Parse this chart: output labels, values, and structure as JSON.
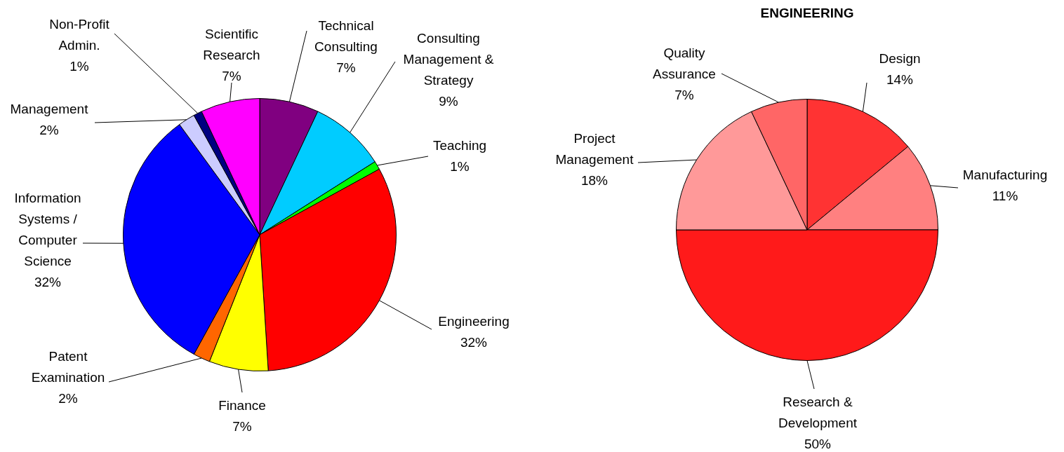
{
  "chart_data": [
    {
      "type": "pie",
      "categories": [
        "Technical Consulting",
        "Consulting Management & Strategy",
        "Teaching",
        "Engineering",
        "Finance",
        "Patent Examination",
        "Information Systems / Computer Science",
        "Management",
        "Non-Profit Admin.",
        "Scientific Research"
      ],
      "values": [
        7,
        9,
        1,
        32,
        7,
        2,
        32,
        2,
        1,
        7
      ],
      "value_labels": [
        "7%",
        "9%",
        "1%",
        "32%",
        "7%",
        "2%",
        "32%",
        "2%",
        "1%",
        "7%"
      ],
      "colors": [
        "#800080",
        "#00ccff",
        "#00ff00",
        "#ff0000",
        "#ffff00",
        "#ff6600",
        "#0000ff",
        "#ccccff",
        "#000080",
        "#ff00ff"
      ],
      "legend": false
    },
    {
      "type": "pie",
      "title": "ENGINEERING",
      "categories": [
        "Design",
        "Manufacturing",
        "Research & Development",
        "Project Management",
        "Quality Assurance"
      ],
      "values": [
        14,
        11,
        50,
        18,
        7
      ],
      "value_labels": [
        "14%",
        "11%",
        "50%",
        "18%",
        "7%"
      ],
      "colors": [
        "#ff3333",
        "#ff8080",
        "#ff1a1a",
        "#ff9999",
        "#ff6666"
      ],
      "legend": false
    }
  ]
}
